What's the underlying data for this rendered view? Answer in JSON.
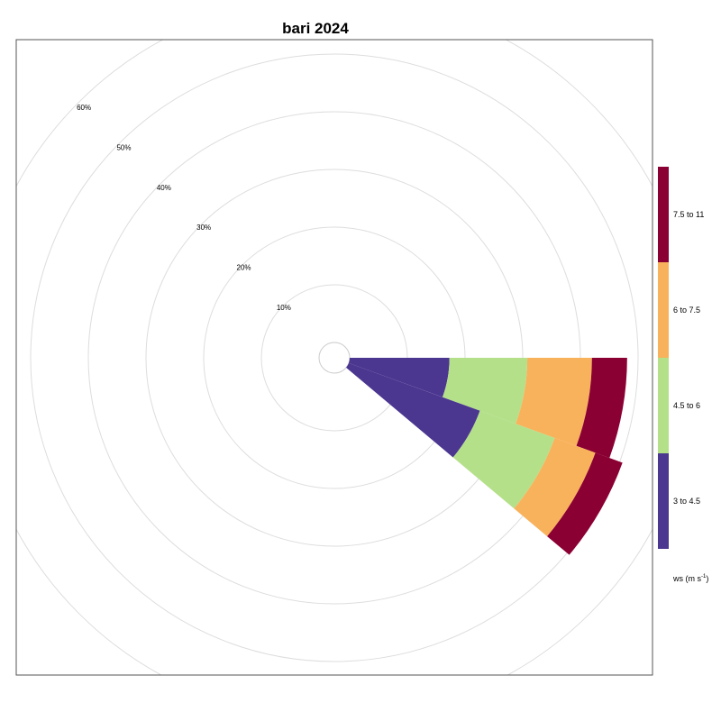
{
  "chart_data": {
    "type": "windrose",
    "title": "bari 2024",
    "radial_ticks": [
      "10%",
      "20%",
      "30%",
      "40%",
      "50%",
      "60%"
    ],
    "radial_values": [
      10,
      20,
      30,
      40,
      50,
      60
    ],
    "legend_title": "ws (m s",
    "legend_title_sup": "-1",
    "legend_title_end": ")",
    "legend_placement": "right",
    "bins": [
      {
        "label": "3 to 4.5",
        "color": "#4B3690"
      },
      {
        "label": "4.5 to 6",
        "color": "#B5E08A"
      },
      {
        "label": "6 to 7.5",
        "color": "#F9B25C"
      },
      {
        "label": "7.5 to 11",
        "color": "#8B0033"
      }
    ],
    "sectors": [
      {
        "direction_from": 90,
        "direction_to": 110,
        "values": [
          17.3,
          13.5,
          11.2,
          6.1
        ]
      },
      {
        "direction_from": 110,
        "direction_to": 130,
        "values": [
          24.2,
          13.8,
          7.5,
          5.0
        ]
      }
    ]
  }
}
